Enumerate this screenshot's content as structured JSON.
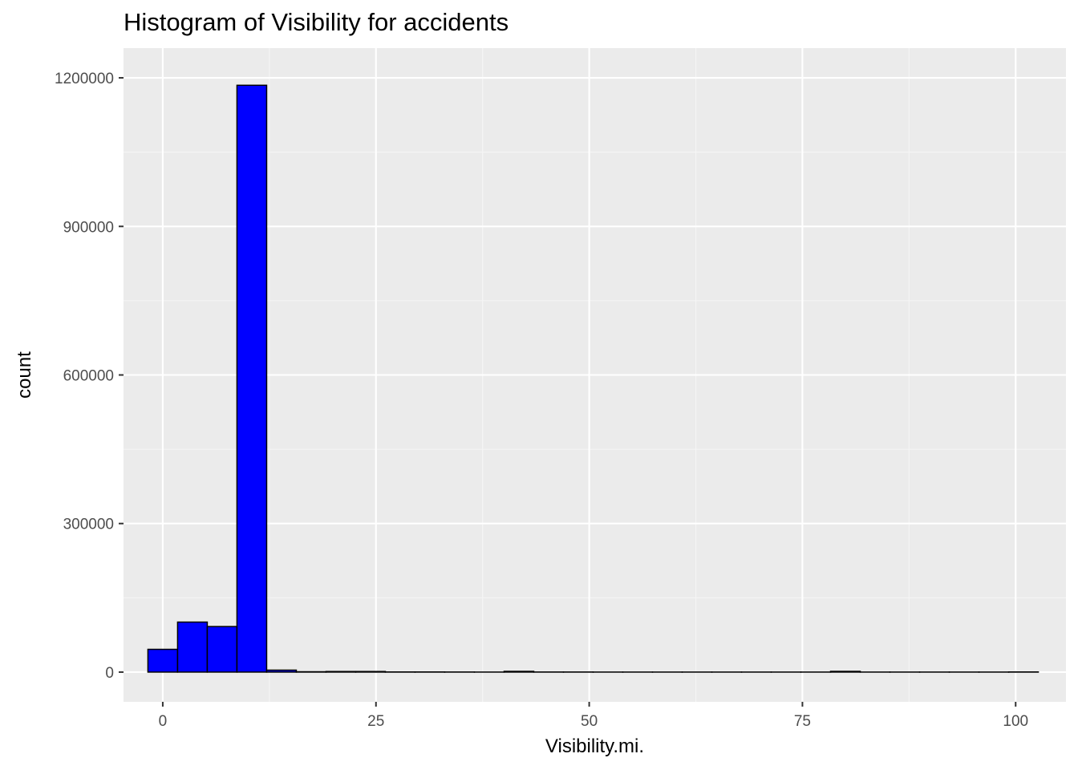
{
  "chart_data": {
    "type": "bar",
    "subtype": "histogram",
    "title": "Histogram of Visibility for accidents",
    "xlabel": "Visibility.mi.",
    "ylabel": "count",
    "xlim": [
      -4.6,
      105.9
    ],
    "ylim": [
      -60000,
      1260000
    ],
    "x_ticks": [
      0,
      25,
      50,
      75,
      100
    ],
    "x_tick_labels": [
      "0",
      "25",
      "50",
      "75",
      "100"
    ],
    "y_ticks": [
      0,
      300000,
      600000,
      900000,
      1200000
    ],
    "y_tick_labels": [
      "0",
      "300000",
      "600000",
      "900000",
      "1200000"
    ],
    "grid": true,
    "legend": "none",
    "bin_width": 3.48,
    "bins": [
      {
        "x0": -1.74,
        "x1": 1.74,
        "count": 46000
      },
      {
        "x0": 1.74,
        "x1": 5.22,
        "count": 101000
      },
      {
        "x0": 5.22,
        "x1": 8.7,
        "count": 92000
      },
      {
        "x0": 8.7,
        "x1": 12.18,
        "count": 1185000
      },
      {
        "x0": 12.18,
        "x1": 15.66,
        "count": 4000
      },
      {
        "x0": 15.66,
        "x1": 19.14,
        "count": 700
      },
      {
        "x0": 19.14,
        "x1": 22.62,
        "count": 1200
      },
      {
        "x0": 22.62,
        "x1": 26.1,
        "count": 1200
      },
      {
        "x0": 26.1,
        "x1": 29.58,
        "count": 300
      },
      {
        "x0": 29.58,
        "x1": 33.06,
        "count": 300
      },
      {
        "x0": 33.06,
        "x1": 36.54,
        "count": 200
      },
      {
        "x0": 36.54,
        "x1": 40.02,
        "count": 100
      },
      {
        "x0": 40.02,
        "x1": 43.5,
        "count": 1500
      },
      {
        "x0": 43.5,
        "x1": 46.98,
        "count": 200
      },
      {
        "x0": 46.98,
        "x1": 50.46,
        "count": 200
      },
      {
        "x0": 50.46,
        "x1": 53.94,
        "count": 100
      },
      {
        "x0": 53.94,
        "x1": 57.42,
        "count": 100
      },
      {
        "x0": 57.42,
        "x1": 60.9,
        "count": 100
      },
      {
        "x0": 60.9,
        "x1": 64.38,
        "count": 100
      },
      {
        "x0": 64.38,
        "x1": 67.86,
        "count": 100
      },
      {
        "x0": 67.86,
        "x1": 71.34,
        "count": 100
      },
      {
        "x0": 71.34,
        "x1": 74.82,
        "count": 100
      },
      {
        "x0": 74.82,
        "x1": 78.3,
        "count": 100
      },
      {
        "x0": 78.3,
        "x1": 81.78,
        "count": 1500
      },
      {
        "x0": 81.78,
        "x1": 85.26,
        "count": 100
      },
      {
        "x0": 85.26,
        "x1": 88.74,
        "count": 100
      },
      {
        "x0": 88.74,
        "x1": 92.22,
        "count": 100
      },
      {
        "x0": 92.22,
        "x1": 95.7,
        "count": 100
      },
      {
        "x0": 95.7,
        "x1": 99.18,
        "count": 100
      },
      {
        "x0": 99.18,
        "x1": 102.66,
        "count": 300
      }
    ],
    "colors": {
      "bar_fill": "#0000FF",
      "bar_outline": "#000000",
      "panel_background": "#EBEBEB",
      "grid_major": "#FFFFFF",
      "grid_minor": "#F5F5F5",
      "tick_label": "#4D4D4D",
      "axis_title": "#000000"
    }
  }
}
